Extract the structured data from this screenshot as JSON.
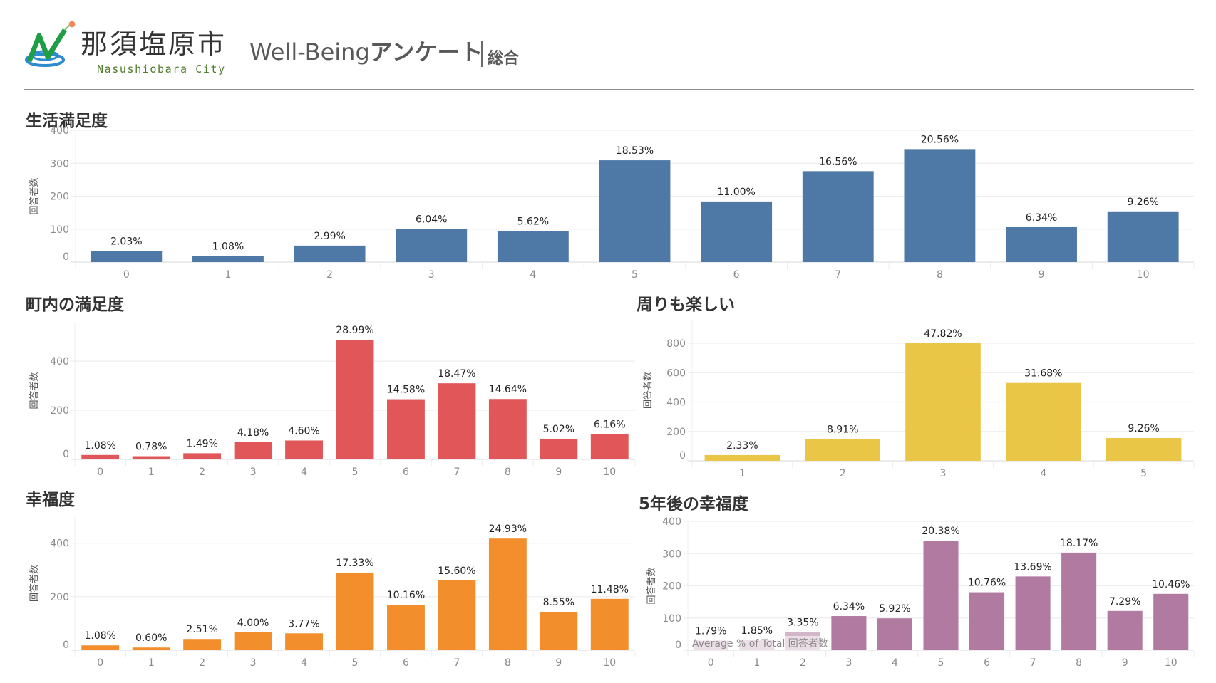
{
  "header": {
    "logo_icon": "nasushiobara-city-logo",
    "city_name_jp": "那須塩原市",
    "city_name_en": "Nasushiobara City",
    "app_title_latin": "Well-Being",
    "app_title_jp": "アンケート",
    "subtitle": "総合"
  },
  "colors": {
    "life_satisfaction": "#4e79a7",
    "town_satisfaction": "#e15759",
    "surroundings_fun": "#e9c646",
    "happiness": "#f28e2b",
    "happiness_5y": "#b07aa1",
    "gridline": "#eeeeee",
    "axis_text": "#8a8a8a",
    "label_text": "#222222"
  },
  "overlay": {
    "average_label": "Average % of Total 回答者数"
  },
  "chart_data": [
    {
      "id": "life_satisfaction",
      "type": "bar",
      "title": "生活満足度",
      "xlabel": "",
      "ylabel": "回答者数",
      "ylim": [
        0,
        400
      ],
      "yticks": [
        0,
        100,
        200,
        300,
        400
      ],
      "grid": true,
      "categories": [
        "0",
        "1",
        "2",
        "3",
        "4",
        "5",
        "6",
        "7",
        "8",
        "9",
        "10"
      ],
      "values": [
        34,
        18,
        50,
        101,
        94,
        309,
        184,
        276,
        343,
        106,
        154
      ],
      "data_labels": [
        "2.03%",
        "1.08%",
        "2.99%",
        "6.04%",
        "5.62%",
        "18.53%",
        "11.00%",
        "16.56%",
        "20.56%",
        "6.34%",
        "9.26%"
      ]
    },
    {
      "id": "town_satisfaction",
      "type": "bar",
      "title": "町内の満足度",
      "xlabel": "",
      "ylabel": "回答者数",
      "ylim": [
        0,
        560
      ],
      "yticks": [
        0,
        200,
        400
      ],
      "grid": true,
      "categories": [
        "0",
        "1",
        "2",
        "3",
        "4",
        "5",
        "6",
        "7",
        "8",
        "9",
        "10"
      ],
      "values": [
        18,
        13,
        25,
        70,
        77,
        487,
        245,
        310,
        246,
        84,
        103
      ],
      "data_labels": [
        "1.08%",
        "0.78%",
        "1.49%",
        "4.18%",
        "4.60%",
        "28.99%",
        "14.58%",
        "18.47%",
        "14.64%",
        "5.02%",
        "6.16%"
      ]
    },
    {
      "id": "surroundings_fun",
      "type": "bar",
      "title": "周りも楽しい",
      "xlabel": "",
      "ylabel": "回答者数",
      "ylim": [
        0,
        960
      ],
      "yticks": [
        0,
        200,
        400,
        600,
        800
      ],
      "grid": true,
      "categories": [
        "1",
        "2",
        "3",
        "4",
        "5"
      ],
      "values": [
        39,
        149,
        800,
        530,
        155
      ],
      "data_labels": [
        "2.33%",
        "8.91%",
        "47.82%",
        "31.68%",
        "9.26%"
      ]
    },
    {
      "id": "happiness",
      "type": "bar",
      "title": "幸福度",
      "xlabel": "",
      "ylabel": "回答者数",
      "ylim": [
        0,
        500
      ],
      "yticks": [
        0,
        200,
        400
      ],
      "grid": true,
      "categories": [
        "0",
        "1",
        "2",
        "3",
        "4",
        "5",
        "6",
        "7",
        "8",
        "9",
        "10"
      ],
      "values": [
        18,
        10,
        42,
        67,
        63,
        290,
        170,
        261,
        417,
        143,
        192
      ],
      "data_labels": [
        "1.08%",
        "0.60%",
        "2.51%",
        "4.00%",
        "3.77%",
        "17.33%",
        "10.16%",
        "15.60%",
        "24.93%",
        "8.55%",
        "11.48%"
      ]
    },
    {
      "id": "happiness_5y",
      "type": "bar",
      "title": "5年後の幸福度",
      "xlabel": "",
      "ylabel": "回答者数",
      "ylim": [
        0,
        400
      ],
      "yticks": [
        0,
        100,
        200,
        300,
        400
      ],
      "grid": true,
      "categories": [
        "0",
        "1",
        "2",
        "3",
        "4",
        "5",
        "6",
        "7",
        "8",
        "9",
        "10"
      ],
      "values": [
        30,
        31,
        56,
        106,
        99,
        340,
        180,
        229,
        303,
        122,
        175
      ],
      "data_labels": [
        "1.79%",
        "1.85%",
        "3.35%",
        "6.34%",
        "5.92%",
        "20.38%",
        "10.76%",
        "13.69%",
        "18.17%",
        "7.29%",
        "10.46%"
      ],
      "annotation": "Average % of Total 回答者数"
    }
  ]
}
